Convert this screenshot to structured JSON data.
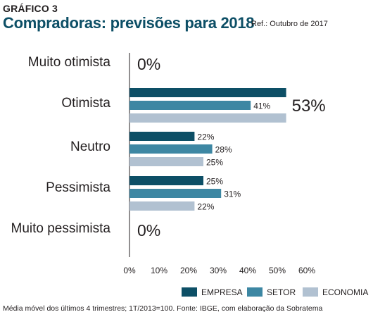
{
  "header": {
    "graf_label": "GRÁFICO 3",
    "title": "Compradoras: previsões para 2018",
    "ref": "Ref.: Outubro de 2017"
  },
  "footer": {
    "source": "Média móvel dos últimos 4 trimestres; 1T/2013=100. Fonte: IBGE, com elaboração da Sobratema"
  },
  "colors": {
    "EMPRESA": "#0d4f66",
    "SETOR": "#3d87a3",
    "ECONOMIA": "#b1c1d1"
  },
  "chart_data": {
    "type": "bar",
    "orientation": "horizontal",
    "title": "Compradoras: previsões para 2018",
    "categories": [
      "Muito otimista",
      "Otimista",
      "Neutro",
      "Pessimista",
      "Muito pessimista"
    ],
    "series": [
      {
        "name": "EMPRESA",
        "values": [
          0,
          53,
          22,
          25,
          0
        ]
      },
      {
        "name": "SETOR",
        "values": [
          0,
          41,
          28,
          31,
          0
        ]
      },
      {
        "name": "ECONOMIA",
        "values": [
          0,
          53,
          25,
          22,
          0
        ]
      }
    ],
    "category_labels": [
      "0%",
      "53%",
      null,
      null,
      "0%"
    ],
    "bar_labels": [
      [
        null,
        null,
        null
      ],
      [
        null,
        "41%",
        null
      ],
      [
        "22%",
        "28%",
        "25%"
      ],
      [
        "25%",
        "31%",
        "22%"
      ],
      [
        null,
        null,
        null
      ]
    ],
    "x_ticks": [
      "0%",
      "10%",
      "20%",
      "30%",
      "40%",
      "50%",
      "60%"
    ],
    "xlim": [
      0,
      60
    ],
    "legend_position": "bottom-right"
  }
}
